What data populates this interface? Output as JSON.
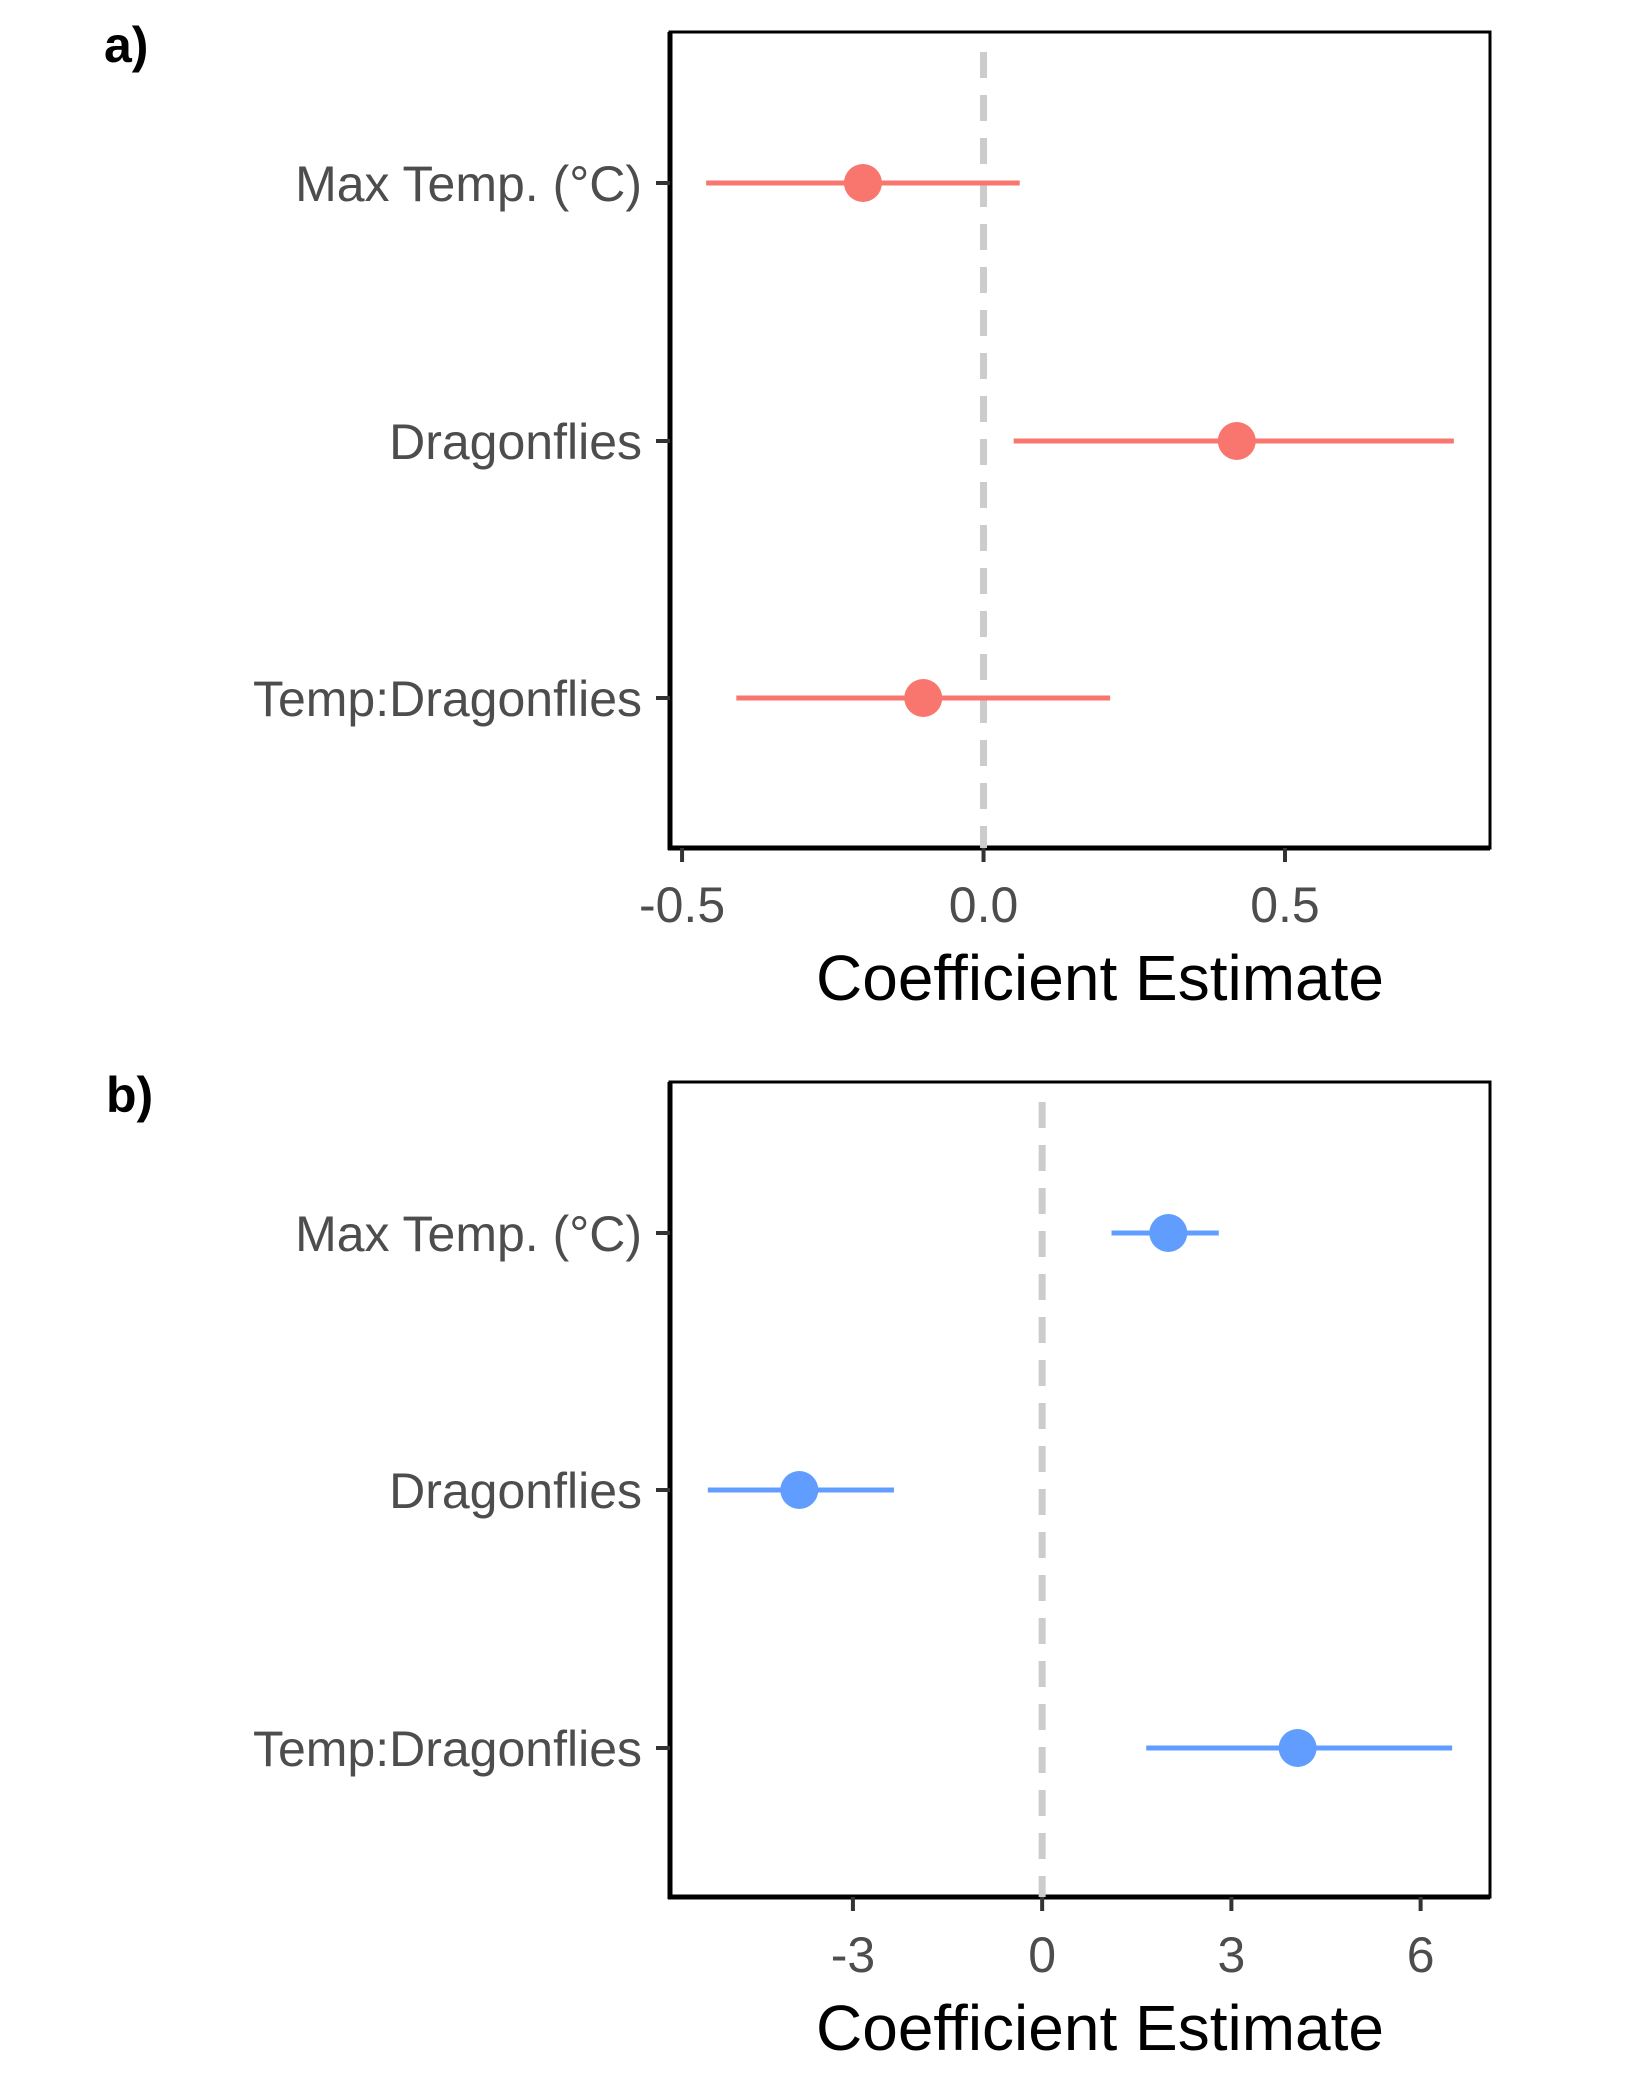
{
  "chart_data": [
    {
      "type": "scatter",
      "panel_label": "a)",
      "xlabel": "Coefficient Estimate",
      "ylabel": "",
      "title": "",
      "categories": [
        "Max Temp. (°C)",
        "Dragonflies",
        "Temp:Dragonflies"
      ],
      "estimates": [
        -0.2,
        0.42,
        -0.1
      ],
      "lower": [
        -0.46,
        0.05,
        -0.41
      ],
      "upper": [
        0.06,
        0.78,
        0.21
      ],
      "xlim": [
        -0.52,
        0.84
      ],
      "x_ticks": [
        -0.5,
        0.0,
        0.5
      ],
      "x_tick_labels": [
        "-0.5",
        "0.0",
        "0.5"
      ],
      "reference_line": 0,
      "color": "#f8766d",
      "grid": false,
      "legend": "none"
    },
    {
      "type": "scatter",
      "panel_label": "b)",
      "xlabel": "Coefficient Estimate",
      "ylabel": "",
      "title": "",
      "categories": [
        "Max Temp. (°C)",
        "Dragonflies",
        "Temp:Dragonflies"
      ],
      "estimates": [
        2.0,
        -3.85,
        4.05
      ],
      "lower": [
        1.1,
        -5.3,
        1.65
      ],
      "upper": [
        2.8,
        -2.35,
        6.5
      ],
      "xlim": [
        -5.9,
        7.1
      ],
      "x_ticks": [
        -3,
        0,
        3,
        6
      ],
      "x_tick_labels": [
        "-3",
        "0",
        "3",
        "6"
      ],
      "reference_line": 0,
      "color": "#619cff",
      "grid": false,
      "legend": "none"
    }
  ]
}
